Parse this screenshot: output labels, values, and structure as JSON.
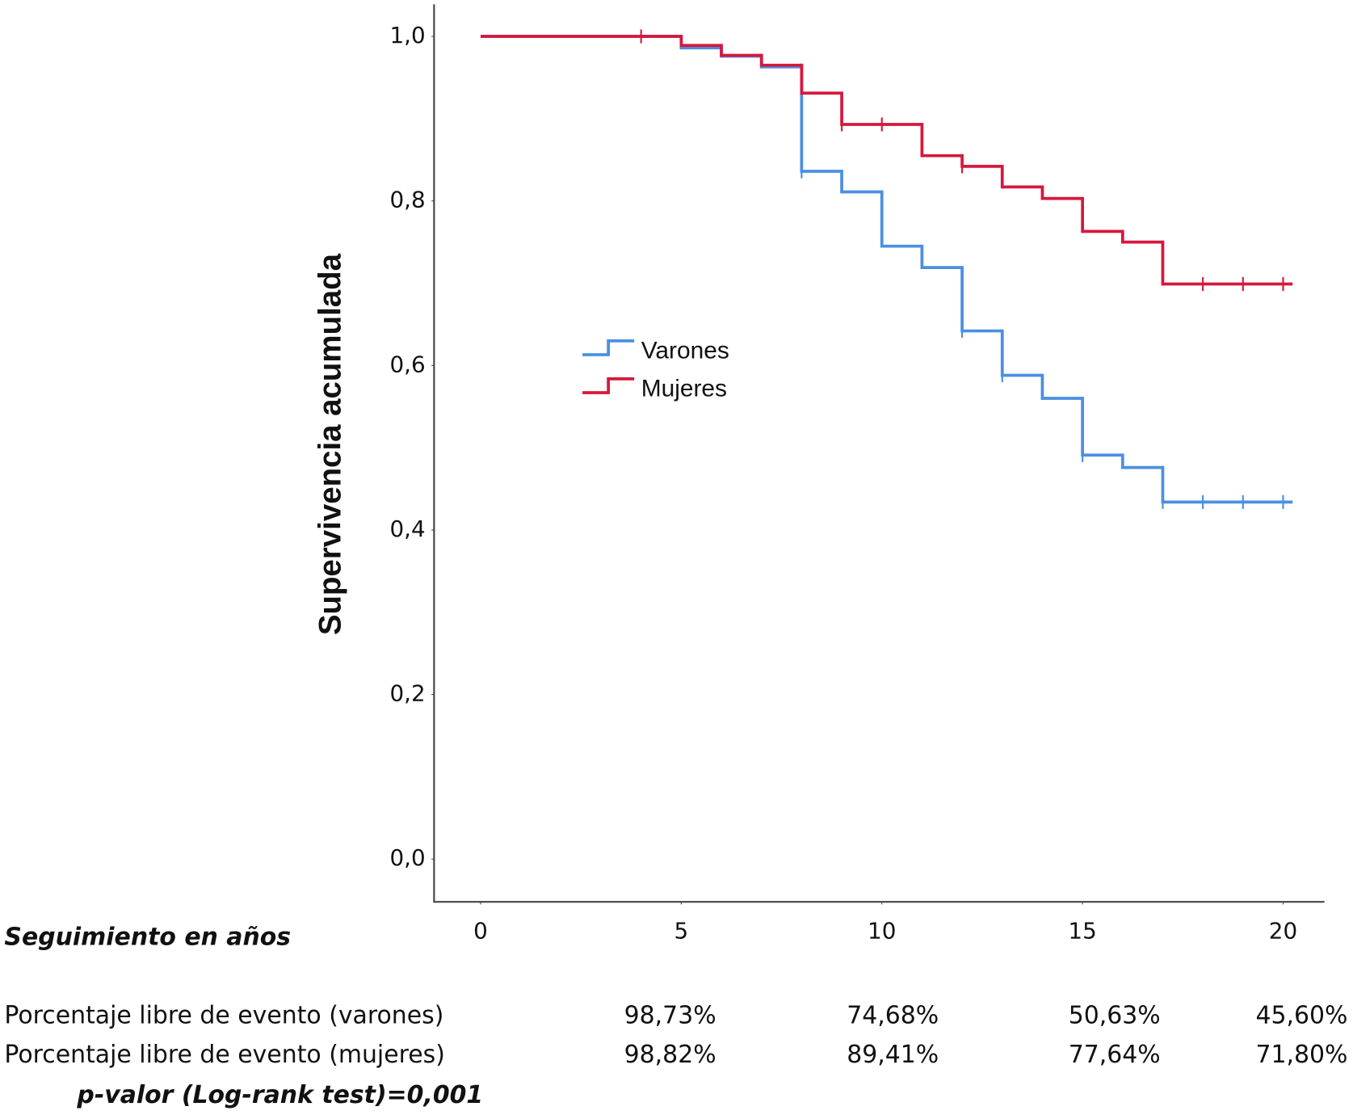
{
  "chart_data": {
    "type": "line",
    "step": true,
    "y_label": "Supervivencia acumulada",
    "x_label": "Seguimiento en años",
    "xlim": [
      -1.16,
      21.03
    ],
    "xticks": [
      0,
      5,
      10,
      15,
      20
    ],
    "ylim": [
      -0.052,
      1.039
    ],
    "yticks": [
      {
        "value": 0,
        "label": "0,0"
      },
      {
        "value": 0.2,
        "label": "0,2"
      },
      {
        "value": 0.4,
        "label": "0,4"
      },
      {
        "value": 0.6,
        "label": "0,6"
      },
      {
        "value": 0.8,
        "label": "0,8"
      },
      {
        "value": 1,
        "label": "1,0"
      }
    ],
    "series": [
      {
        "name": "Varones",
        "color": "#4a90e2",
        "x": [
          0,
          5,
          6,
          7,
          8,
          9,
          10,
          11,
          12,
          13,
          14,
          15,
          16,
          17,
          20.2
        ],
        "values": [
          1,
          0.986,
          0.976,
          0.963,
          0.836,
          0.811,
          0.745,
          0.719,
          0.642,
          0.588,
          0.56,
          0.491,
          0.476,
          0.434,
          0.434
        ],
        "censored": {
          "x": [
            8,
            12,
            13,
            15,
            17,
            18,
            19,
            20
          ],
          "values": [
            0.836,
            0.642,
            0.588,
            0.491,
            0.434,
            0.434,
            0.434,
            0.434
          ]
        }
      },
      {
        "name": "Mujeres",
        "color": "#d6183d",
        "x": [
          0,
          5,
          6,
          7,
          8,
          9,
          11,
          12,
          13,
          14,
          15,
          16,
          17,
          20.2
        ],
        "values": [
          1,
          0.989,
          0.977,
          0.965,
          0.931,
          0.893,
          0.855,
          0.842,
          0.817,
          0.803,
          0.763,
          0.75,
          0.699,
          0.699
        ],
        "censored": {
          "x": [
            4,
            9,
            10,
            12,
            18,
            19,
            20
          ],
          "values": [
            1,
            0.893,
            0.893,
            0.842,
            0.699,
            0.699,
            0.699
          ]
        }
      }
    ]
  },
  "table": {
    "rows": [
      {
        "label": "Porcentaje libre de evento (varones)",
        "cells": [
          "98,73%",
          "74,68%",
          "50,63%",
          "45,60%"
        ]
      },
      {
        "label": "Porcentaje libre de evento (mujeres)",
        "cells": [
          "98,82%",
          "89,41%",
          "77,64%",
          "71,80%"
        ]
      }
    ],
    "footnote": "p-valor (Log-rank test)=0,001"
  }
}
